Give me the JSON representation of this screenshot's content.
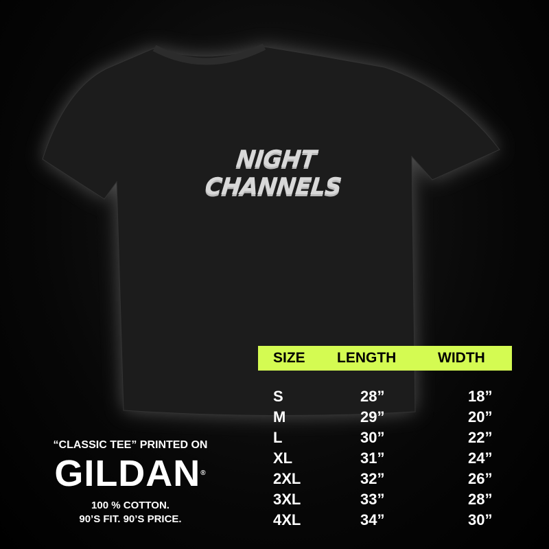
{
  "shirt": {
    "print_text": "NIGHT CHANNELS",
    "color": "#1c1c1c"
  },
  "size_chart": {
    "header_color": "#d4fb52",
    "headers": [
      "SIZE",
      "LENGTH",
      "WIDTH"
    ],
    "rows": [
      {
        "size": "S",
        "length": "28”",
        "width": "18”"
      },
      {
        "size": "M",
        "length": "29”",
        "width": "20”"
      },
      {
        "size": "L",
        "length": "30”",
        "width": "22”"
      },
      {
        "size": "XL",
        "length": "31”",
        "width": "24”"
      },
      {
        "size": "2XL",
        "length": "32”",
        "width": "26”"
      },
      {
        "size": "3XL",
        "length": "33”",
        "width": "28”"
      },
      {
        "size": "4XL",
        "length": "34”",
        "width": "30”"
      }
    ]
  },
  "brand": {
    "tagline": "“CLASSIC TEE” PRINTED ON",
    "logo": "GILDAN",
    "registered": "®",
    "line1": "100 % COTTON.",
    "line2": "90’S FIT. 90’S PRICE."
  }
}
